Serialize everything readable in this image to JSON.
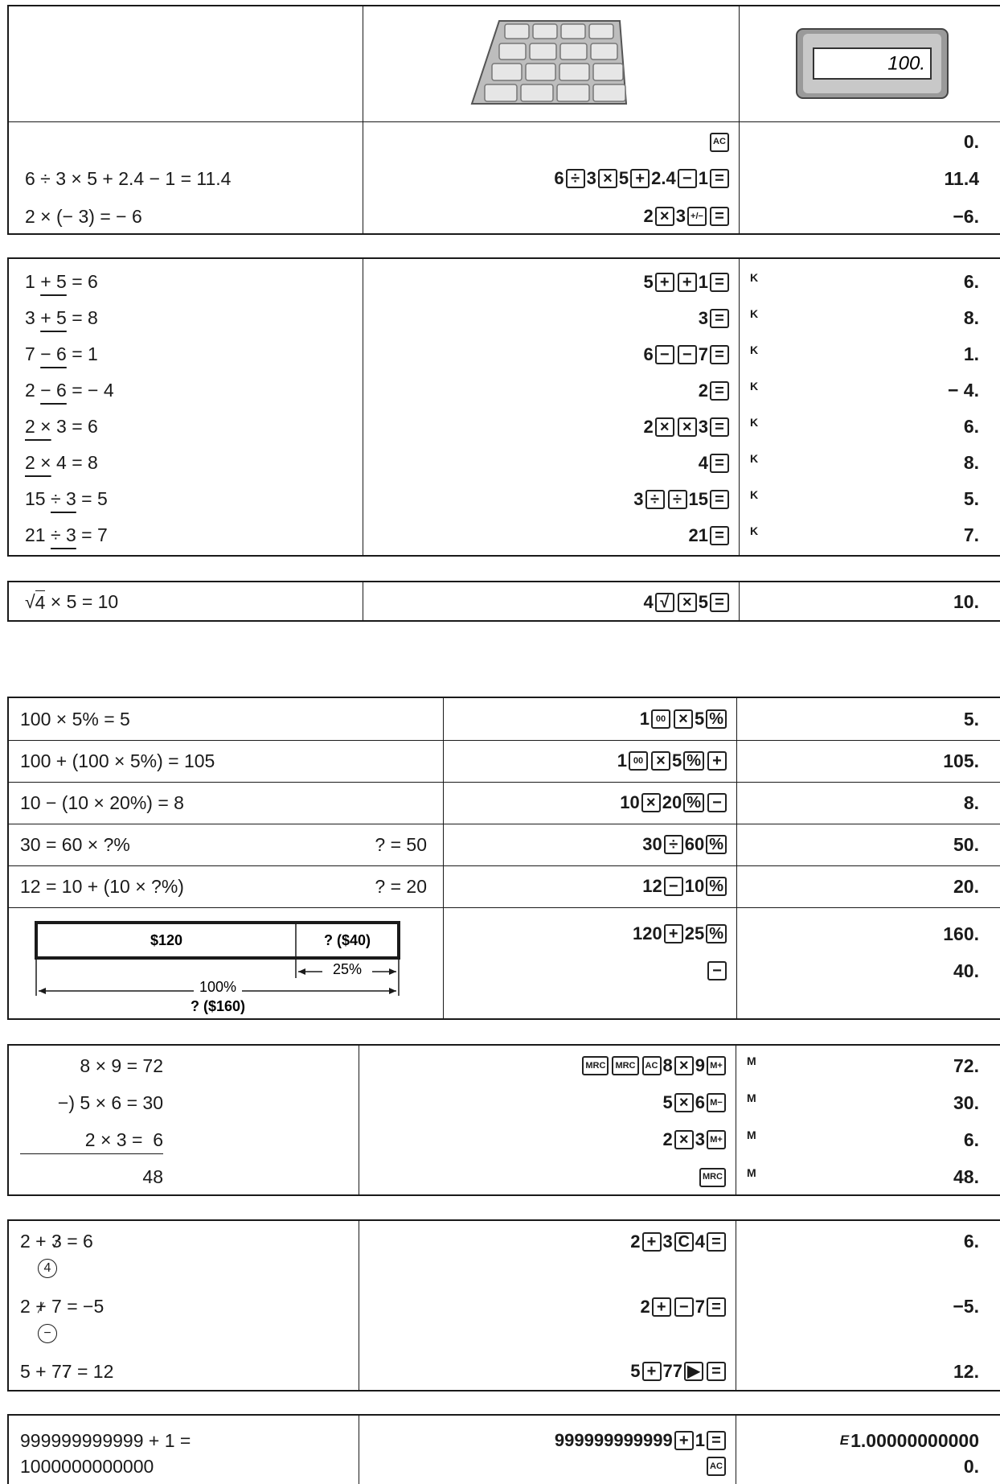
{
  "header": {
    "display": "100."
  },
  "tables": [
    {
      "rows": [
        {
          "expr": [],
          "lines": [
            {
              "keys": [
                {
                  "key": "AC"
                }
              ],
              "result": "0."
            }
          ]
        },
        {
          "expr": [
            [
              "6 ÷ 3 × 5 + 2.4 − 1 = 11.4"
            ]
          ],
          "lines": [
            {
              "keys": [
                "6",
                {
                  "key": "÷"
                },
                "3",
                {
                  "key": "×"
                },
                "5",
                {
                  "key": "+"
                },
                "2.4",
                {
                  "key": "−"
                },
                "1",
                {
                  "key": "="
                }
              ],
              "result": "11.4"
            }
          ]
        },
        {
          "expr": [
            [
              "2 × (− 3) = − 6"
            ]
          ],
          "lines": [
            {
              "keys": [
                "2",
                {
                  "key": "×"
                },
                "3",
                {
                  "key": "+/−"
                },
                {
                  "key": "="
                }
              ],
              "result": "−6."
            }
          ]
        }
      ]
    },
    {
      "rows": [
        {
          "expr": [
            [
              "1 ",
              {
                "u": "+ 5"
              },
              " = 6"
            ]
          ],
          "lines": [
            {
              "keys": [
                "5",
                {
                  "key": "+"
                },
                {
                  "key": "+"
                },
                "1",
                {
                  "key": "="
                }
              ],
              "indicator": "K",
              "result": "6."
            }
          ]
        },
        {
          "expr": [
            [
              "3 ",
              {
                "u": "+ 5"
              },
              " = 8"
            ]
          ],
          "lines": [
            {
              "keys": [
                "3",
                {
                  "key": "="
                }
              ],
              "indicator": "K",
              "result": "8."
            }
          ]
        },
        {
          "expr": [
            [
              "7 ",
              {
                "u": "− 6"
              },
              " = 1"
            ]
          ],
          "lines": [
            {
              "keys": [
                "6",
                {
                  "key": "−"
                },
                {
                  "key": "−"
                },
                "7",
                {
                  "key": "="
                }
              ],
              "indicator": "K",
              "result": "1."
            }
          ]
        },
        {
          "expr": [
            [
              "2 ",
              {
                "u": "− 6"
              },
              " = − 4"
            ]
          ],
          "lines": [
            {
              "keys": [
                "2",
                {
                  "key": "="
                }
              ],
              "indicator": "K",
              "result": "− 4."
            }
          ]
        },
        {
          "expr": [
            [
              {
                "u": "2 ×"
              },
              " 3 = 6"
            ]
          ],
          "lines": [
            {
              "keys": [
                "2",
                {
                  "key": "×"
                },
                {
                  "key": "×"
                },
                "3",
                {
                  "key": "="
                }
              ],
              "indicator": "K",
              "result": "6."
            }
          ]
        },
        {
          "expr": [
            [
              {
                "u": "2 ×"
              },
              " 4 = 8"
            ]
          ],
          "lines": [
            {
              "keys": [
                "4",
                {
                  "key": "="
                }
              ],
              "indicator": "K",
              "result": "8."
            }
          ]
        },
        {
          "expr": [
            [
              "15 ",
              {
                "u": "÷ 3"
              },
              " = 5"
            ]
          ],
          "lines": [
            {
              "keys": [
                "3",
                {
                  "key": "÷"
                },
                {
                  "key": "÷"
                },
                "15",
                {
                  "key": "="
                }
              ],
              "indicator": "K",
              "result": "5."
            }
          ]
        },
        {
          "expr": [
            [
              "21 ",
              {
                "u": "÷ 3"
              },
              " = 7"
            ]
          ],
          "lines": [
            {
              "keys": [
                "21",
                {
                  "key": "="
                }
              ],
              "indicator": "K",
              "result": "7."
            }
          ]
        }
      ]
    },
    {
      "rows": [
        {
          "expr": [
            [
              "√",
              {
                "o": "4"
              },
              " × 5 = 10"
            ]
          ],
          "lines": [
            {
              "keys": [
                "4",
                {
                  "key": "√"
                },
                {
                  "key": "×"
                },
                "5",
                {
                  "key": "="
                }
              ],
              "result": "10."
            }
          ]
        }
      ]
    },
    {
      "rows": [
        {
          "expr": [
            [
              "100 × 5% = 5"
            ]
          ],
          "lines": [
            {
              "keys": [
                "1",
                {
                  "key": "00"
                },
                {
                  "key": "×"
                },
                "5",
                {
                  "key": "%"
                }
              ],
              "result": "5."
            }
          ]
        },
        {
          "expr": [
            [
              "100 + (100 × 5%) = 105"
            ]
          ],
          "lines": [
            {
              "keys": [
                "1",
                {
                  "key": "00"
                },
                {
                  "key": "×"
                },
                "5",
                {
                  "key": "%"
                },
                {
                  "key": "+"
                }
              ],
              "result": "105."
            }
          ]
        },
        {
          "expr": [
            [
              "10 − (10 × 20%) = 8"
            ]
          ],
          "lines": [
            {
              "keys": [
                "10",
                {
                  "key": "×"
                },
                "20",
                {
                  "key": "%"
                },
                {
                  "key": "−"
                }
              ],
              "result": "8."
            }
          ]
        },
        {
          "expr": [
            [
              "30 = 60 × ?%"
            ]
          ],
          "note": "? = 50",
          "lines": [
            {
              "keys": [
                "30",
                {
                  "key": "÷"
                },
                "60",
                {
                  "key": "%"
                }
              ],
              "result": "50."
            }
          ]
        },
        {
          "expr": [
            [
              "12 = 10 + (10 × ?%)"
            ]
          ],
          "note": "? = 20",
          "lines": [
            {
              "keys": [
                "12",
                {
                  "key": "−"
                },
                "10",
                {
                  "key": "%"
                }
              ],
              "result": "20."
            }
          ]
        },
        {
          "diagram": {
            "left": "$120",
            "right": "? ($40)",
            "part": "25%",
            "whole": "100%",
            "total": "? ($160)"
          },
          "lines": [
            {
              "keys": [
                "120",
                {
                  "key": "+"
                },
                "25",
                {
                  "key": "%"
                }
              ],
              "result": "160."
            },
            {
              "keys": [
                {
                  "key": "−"
                }
              ],
              "result": "40."
            }
          ]
        }
      ]
    },
    {
      "rows": [
        {
          "expr": [
            [
              "8 × 9 = 72"
            ]
          ],
          "lines": [
            {
              "keys": [
                {
                  "key": "MRC"
                },
                {
                  "key": "MRC"
                },
                {
                  "key": "AC"
                },
                "8",
                {
                  "key": "×"
                },
                "9",
                {
                  "key": "M+"
                }
              ],
              "indicator": "M",
              "result": "72."
            }
          ]
        },
        {
          "expr": [
            [
              "−) 5 × 6 = 30"
            ]
          ],
          "lines": [
            {
              "keys": [
                "5",
                {
                  "key": "×"
                },
                "6",
                {
                  "key": "M−"
                }
              ],
              "indicator": "M",
              "result": "30."
            }
          ]
        },
        {
          "expr": [
            [
              "2 × 3 =  6"
            ]
          ],
          "lines": [
            {
              "keys": [
                "2",
                {
                  "key": "×"
                },
                "3",
                {
                  "key": "M+"
                }
              ],
              "indicator": "M",
              "result": "6."
            }
          ]
        },
        {
          "expr": [
            [
              "48"
            ]
          ],
          "lines": [
            {
              "keys": [
                {
                  "key": "MRC"
                }
              ],
              "indicator": "M",
              "result": "48."
            }
          ]
        }
      ]
    },
    {
      "rows": [
        {
          "expr": [
            [
              "2 + ",
              {
                "s": "3"
              },
              " = 6"
            ],
            [
              {
                "c": "4"
              }
            ]
          ],
          "lines": [
            {
              "keys": [
                "2",
                {
                  "key": "+"
                },
                "3",
                {
                  "key": "C"
                },
                "4",
                {
                  "key": "="
                }
              ],
              "result": "6."
            }
          ]
        },
        {
          "expr": [
            [
              "2 ",
              {
                "s": "+"
              },
              " 7 = −5"
            ],
            [
              {
                "c": "−"
              }
            ]
          ],
          "lines": [
            {
              "keys": [
                "2",
                {
                  "key": "+"
                },
                {
                  "key": "−"
                },
                "7",
                {
                  "key": "="
                }
              ],
              "result": "−5."
            }
          ]
        },
        {
          "expr": [
            [
              "5 + 7",
              {
                "s": "7"
              },
              " = 12"
            ]
          ],
          "lines": [
            {
              "keys": [
                "5",
                {
                  "key": "+"
                },
                "77",
                {
                  "key": "▶"
                },
                {
                  "key": "="
                }
              ],
              "result": "12."
            }
          ]
        }
      ]
    },
    {
      "indicator_inline": true,
      "rows": [
        {
          "expr": [
            [
              "999999999999 + 1 ="
            ],
            [
              "1000000000000"
            ]
          ],
          "lines": [
            {
              "keys": [
                "999999999999",
                {
                  "key": "+"
                },
                "1",
                {
                  "key": "="
                }
              ],
              "indicator": "E",
              "result": "1.00000000000"
            },
            {
              "keys": [
                {
                  "key": "AC"
                }
              ],
              "result": "0."
            }
          ]
        }
      ]
    }
  ]
}
